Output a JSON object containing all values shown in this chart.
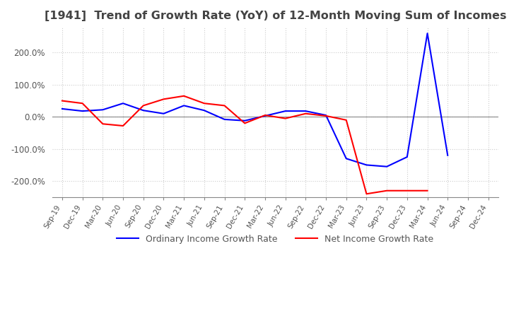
{
  "title": "[1941]  Trend of Growth Rate (YoY) of 12-Month Moving Sum of Incomes",
  "title_fontsize": 11.5,
  "ylim": [
    -250,
    280
  ],
  "yticks": [
    -200,
    -100,
    0,
    100,
    200
  ],
  "yticklabels": [
    "-200.0%",
    "-100.0%",
    "0.0%",
    "100.0%",
    "200.0%"
  ],
  "legend_labels": [
    "Ordinary Income Growth Rate",
    "Net Income Growth Rate"
  ],
  "legend_colors": [
    "#0000FF",
    "#FF0000"
  ],
  "x_labels": [
    "Sep-19",
    "Dec-19",
    "Mar-20",
    "Jun-20",
    "Sep-20",
    "Dec-20",
    "Mar-21",
    "Jun-21",
    "Sep-21",
    "Dec-21",
    "Mar-22",
    "Jun-22",
    "Sep-22",
    "Dec-22",
    "Mar-23",
    "Jun-23",
    "Sep-23",
    "Dec-23",
    "Mar-24",
    "Jun-24",
    "Sep-24",
    "Dec-24"
  ],
  "ordinary_income": [
    25,
    18,
    22,
    42,
    20,
    10,
    35,
    20,
    -8,
    -12,
    3,
    18,
    18,
    5,
    -130,
    -150,
    -155,
    -125,
    260,
    -120,
    null,
    null
  ],
  "net_income": [
    50,
    42,
    -22,
    -28,
    35,
    55,
    65,
    42,
    35,
    -20,
    5,
    -5,
    10,
    3,
    -10,
    -240,
    -230,
    -230,
    -230,
    null,
    null,
    null
  ],
  "bg_color": "#FFFFFF",
  "grid_color": "#CCCCCC",
  "line_width": 1.5
}
